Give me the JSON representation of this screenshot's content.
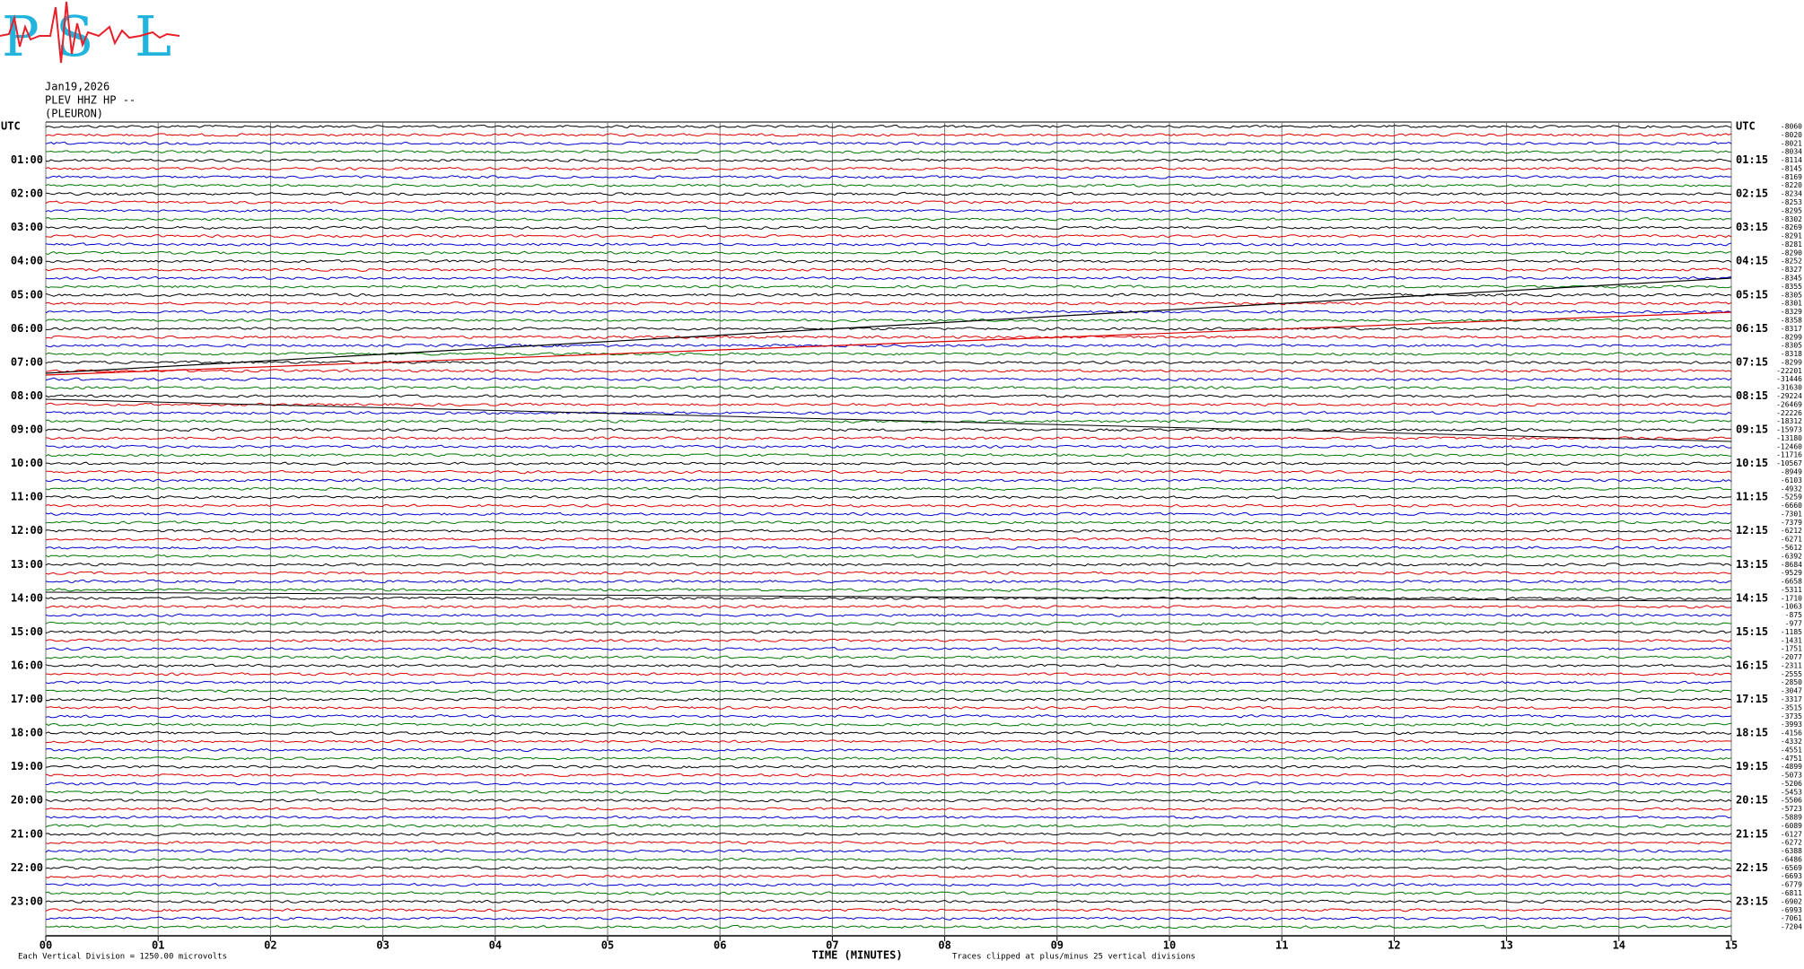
{
  "logo": [
    "P",
    "S",
    "L"
  ],
  "header": {
    "date": "Jan19,2026",
    "station": "PLEV HHZ HP --",
    "location": "(PLEURON)"
  },
  "left_labels": [
    "UTC",
    "01:00",
    "02:00",
    "03:00",
    "04:00",
    "05:00",
    "06:00",
    "07:00",
    "08:00",
    "09:00",
    "10:00",
    "11:00",
    "12:00",
    "13:00",
    "14:00",
    "15:00",
    "16:00",
    "17:00",
    "18:00",
    "19:00",
    "20:00",
    "21:00",
    "22:00",
    "23:00"
  ],
  "right_labels": [
    "UTC",
    "01:15",
    "02:15",
    "03:15",
    "04:15",
    "05:15",
    "06:15",
    "07:15",
    "08:15",
    "09:15",
    "10:15",
    "11:15",
    "12:15",
    "13:15",
    "14:15",
    "15:15",
    "16:15",
    "17:15",
    "18:15",
    "19:15",
    "20:15",
    "21:15",
    "22:15",
    "23:15"
  ],
  "trace_offsets": [
    -8060,
    -8020,
    -8021,
    -8034,
    -8114,
    -8145,
    -8169,
    -8220,
    -8234,
    -8253,
    -8295,
    -8302,
    -8269,
    -8291,
    -8281,
    -8290,
    -8252,
    -8327,
    -8345,
    -8355,
    -8305,
    -8301,
    -8329,
    -8358,
    -8317,
    -8299,
    -8305,
    -8318,
    -8299,
    -22201,
    -31446,
    -31630,
    -29224,
    -26469,
    -22226,
    -18312,
    -15973,
    -13180,
    -12460,
    -11716,
    -10567,
    -8949,
    -6103,
    -4932,
    -5259,
    -6660,
    -7301,
    -7379,
    -6212,
    -6271,
    -5612,
    -6392,
    -8684,
    -9529,
    -6658,
    -5311,
    -1710,
    -1063,
    -875,
    -977,
    -1185,
    -1431,
    -1751,
    -2077,
    -2311,
    -2555,
    -2850,
    -3047,
    -3317,
    -3515,
    -3735,
    -3993,
    -4156,
    -4332,
    -4551,
    -4751,
    -4899,
    -5073,
    -5206,
    -5453,
    -5506,
    -5723,
    -5889,
    -6089,
    -6127,
    -6272,
    -6388,
    -6486,
    -6569,
    -6693,
    -6779,
    -6811,
    -6902,
    -6993,
    -7061,
    -7204
  ],
  "x_axis": {
    "labels": [
      "00",
      "01",
      "02",
      "03",
      "04",
      "05",
      "06",
      "07",
      "08",
      "09",
      "10",
      "11",
      "12",
      "13",
      "14",
      "15"
    ],
    "title": "TIME (MINUTES)"
  },
  "footer": {
    "scale": "Each Vertical Division = 1250.00 microvolts",
    "clip": "Traces clipped at plus/minus 25 vertical divisions"
  }
}
